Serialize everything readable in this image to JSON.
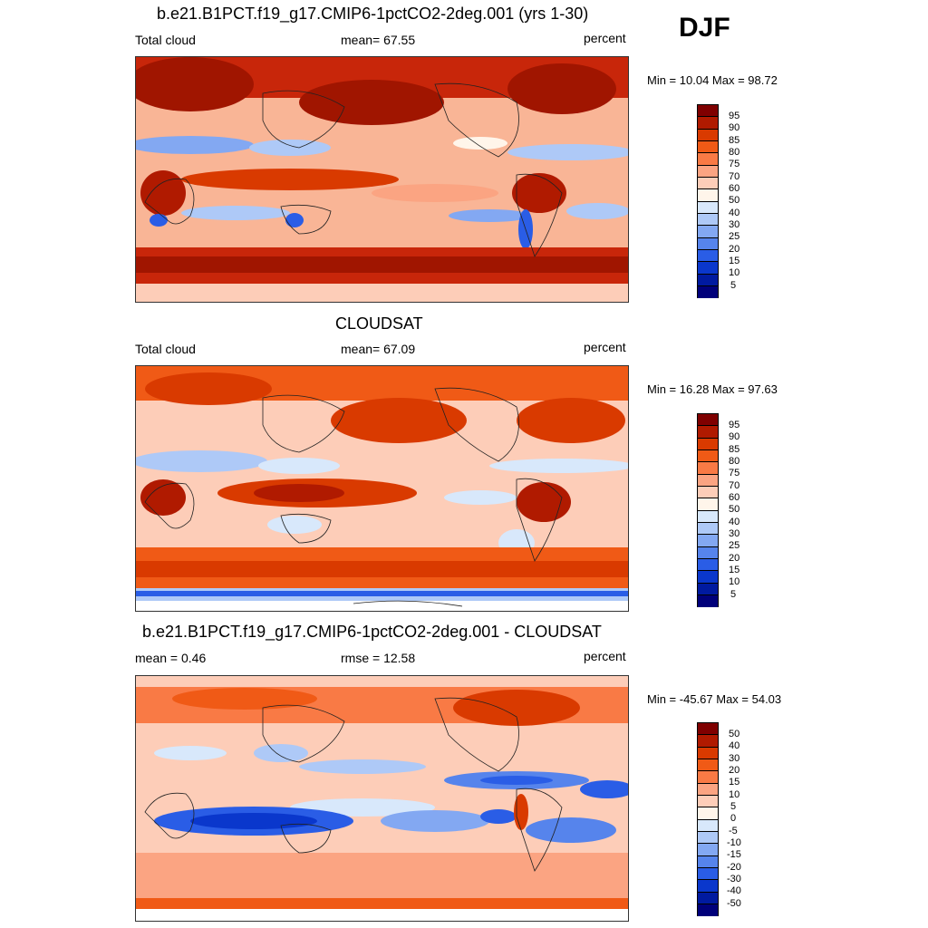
{
  "season": "DJF",
  "panels": [
    {
      "id": "model",
      "title": "b.e21.B1PCT.f19_g17.CMIP6-1pctCO2-2deg.001 (yrs 1-30)",
      "left_label": "Total cloud",
      "center_label": "mean=  67.55",
      "right_label": "percent",
      "minmax": "Min =  10.04 Max =  98.72",
      "colorbar": {
        "colors": [
          "#7f0000",
          "#b01a00",
          "#d93a00",
          "#f05a16",
          "#f97a45",
          "#fba482",
          "#fdcdb8",
          "#fff5ea",
          "#d8e8fb",
          "#aec9f7",
          "#83a8f2",
          "#5684ec",
          "#2a5de6",
          "#0a37cc",
          "#001aa0",
          "#00007a"
        ],
        "labels": [
          "95",
          "90",
          "85",
          "80",
          "75",
          "70",
          "60",
          "50",
          "40",
          "30",
          "25",
          "20",
          "15",
          "10",
          "5"
        ]
      }
    },
    {
      "id": "obs",
      "title": "CLOUDSAT",
      "left_label": "Total cloud",
      "center_label": "mean=  67.09",
      "right_label": "percent",
      "minmax": "Min =  16.28 Max =  97.63",
      "colorbar": {
        "colors": [
          "#7f0000",
          "#b01a00",
          "#d93a00",
          "#f05a16",
          "#f97a45",
          "#fba482",
          "#fdcdb8",
          "#fff5ea",
          "#d8e8fb",
          "#aec9f7",
          "#83a8f2",
          "#5684ec",
          "#2a5de6",
          "#0a37cc",
          "#001aa0",
          "#00007a"
        ],
        "labels": [
          "95",
          "90",
          "85",
          "80",
          "75",
          "70",
          "60",
          "50",
          "40",
          "30",
          "25",
          "20",
          "15",
          "10",
          "5"
        ]
      }
    },
    {
      "id": "diff",
      "title": "b.e21.B1PCT.f19_g17.CMIP6-1pctCO2-2deg.001 - CLOUDSAT",
      "left_label": "mean =   0.46",
      "center_label": "rmse =  12.58",
      "right_label": "percent",
      "minmax": "Min = -45.67 Max =  54.03",
      "colorbar": {
        "colors": [
          "#7f0000",
          "#b01a00",
          "#d93a00",
          "#f05a16",
          "#f97a45",
          "#fba482",
          "#fdcdb8",
          "#fff5ea",
          "#d8e8fb",
          "#aec9f7",
          "#83a8f2",
          "#5684ec",
          "#2a5de6",
          "#0a37cc",
          "#001aa0",
          "#00007a"
        ],
        "labels": [
          "50",
          "40",
          "30",
          "20",
          "15",
          "10",
          "5",
          "0",
          "-5",
          "-10",
          "-15",
          "-20",
          "-30",
          "-40",
          "-50"
        ]
      }
    }
  ]
}
